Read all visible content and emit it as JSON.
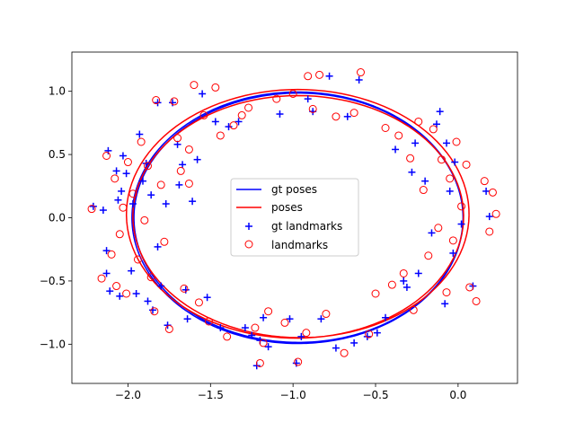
{
  "chart_data": {
    "type": "scatter",
    "title": "",
    "xlabel": "",
    "ylabel": "",
    "xlim": [
      -2.34,
      0.36
    ],
    "ylim": [
      -1.31,
      1.31
    ],
    "xticks": [
      -2.0,
      -1.5,
      -1.0,
      -0.5,
      0.0
    ],
    "yticks": [
      -1.0,
      -0.5,
      0.0,
      0.5,
      1.0
    ],
    "xtick_labels": [
      "−2.0",
      "−1.5",
      "−1.0",
      "−0.5",
      "0.0"
    ],
    "ytick_labels": [
      "−1.0",
      "−0.5",
      "0.0",
      "0.5",
      "1.0"
    ],
    "grid": false,
    "legend_position": "center",
    "legend": [
      {
        "label": "gt poses",
        "marker": "line",
        "color": "#0000ff"
      },
      {
        "label": "poses",
        "marker": "line",
        "color": "#ff0000"
      },
      {
        "label": "gt landmarks",
        "marker": "plus",
        "color": "#0000ff"
      },
      {
        "label": "landmarks",
        "marker": "circle",
        "color": "#ff0000"
      }
    ],
    "series": [
      {
        "name": "gt poses",
        "kind": "line",
        "color": "#0000ff",
        "shape": "ellipse",
        "center": [
          -0.97,
          0.0
        ],
        "rx": 1.0,
        "ry": 0.99,
        "loops": 2
      },
      {
        "name": "poses",
        "kind": "line",
        "color": "#ff0000",
        "shape": "ellipse",
        "center": [
          -0.97,
          0.02
        ],
        "rx": 1.02,
        "ry": 0.97,
        "loops": 6
      },
      {
        "name": "gt landmarks",
        "kind": "scatter",
        "marker": "plus",
        "color": "#0000ff",
        "points": [
          [
            -2.21,
            0.09
          ],
          [
            -2.15,
            0.06
          ],
          [
            -2.13,
            -0.26
          ],
          [
            -2.13,
            -0.44
          ],
          [
            -2.12,
            0.53
          ],
          [
            -2.11,
            -0.58
          ],
          [
            -2.07,
            0.37
          ],
          [
            -2.06,
            0.14
          ],
          [
            -2.05,
            -0.62
          ],
          [
            -2.04,
            0.21
          ],
          [
            -2.03,
            0.49
          ],
          [
            -2.01,
            0.35
          ],
          [
            -1.98,
            -0.42
          ],
          [
            -1.97,
            0.11
          ],
          [
            -1.95,
            -0.6
          ],
          [
            -1.93,
            0.66
          ],
          [
            -1.91,
            0.29
          ],
          [
            -1.89,
            0.43
          ],
          [
            -1.88,
            -0.66
          ],
          [
            -1.86,
            0.18
          ],
          [
            -1.85,
            -0.73
          ],
          [
            -1.82,
            0.91
          ],
          [
            -1.82,
            -0.23
          ],
          [
            -1.8,
            -0.54
          ],
          [
            -1.77,
            0.11
          ],
          [
            -1.76,
            -0.85
          ],
          [
            -1.73,
            0.91
          ],
          [
            -1.7,
            0.58
          ],
          [
            -1.69,
            0.26
          ],
          [
            -1.67,
            0.42
          ],
          [
            -1.65,
            -0.57
          ],
          [
            -1.64,
            -0.8
          ],
          [
            -1.61,
            0.13
          ],
          [
            -1.58,
            0.46
          ],
          [
            -1.55,
            0.98
          ],
          [
            -1.52,
            -0.63
          ],
          [
            -1.47,
            0.76
          ],
          [
            -1.44,
            -0.87
          ],
          [
            -1.39,
            0.72
          ],
          [
            -1.33,
            0.76
          ],
          [
            -1.29,
            -0.87
          ],
          [
            -1.25,
            -0.93
          ],
          [
            -1.22,
            -1.17
          ],
          [
            -1.2,
            -0.97
          ],
          [
            -1.18,
            -0.79
          ],
          [
            -1.15,
            -1.02
          ],
          [
            -1.08,
            0.82
          ],
          [
            -1.02,
            -0.8
          ],
          [
            -0.98,
            -1.15
          ],
          [
            -0.95,
            -0.94
          ],
          [
            -0.91,
            0.94
          ],
          [
            -0.88,
            0.84
          ],
          [
            -0.83,
            -0.8
          ],
          [
            -0.78,
            1.12
          ],
          [
            -0.74,
            -1.03
          ],
          [
            -0.67,
            0.8
          ],
          [
            -0.63,
            -0.99
          ],
          [
            -0.6,
            1.09
          ],
          [
            -0.55,
            -0.94
          ],
          [
            -0.49,
            -0.91
          ],
          [
            -0.44,
            -0.79
          ],
          [
            -0.38,
            0.54
          ],
          [
            -0.33,
            -0.5
          ],
          [
            -0.31,
            -0.55
          ],
          [
            -0.28,
            0.36
          ],
          [
            -0.26,
            0.59
          ],
          [
            -0.24,
            -0.44
          ],
          [
            -0.2,
            0.29
          ],
          [
            -0.16,
            -0.12
          ],
          [
            -0.13,
            0.74
          ],
          [
            -0.11,
            0.84
          ],
          [
            -0.08,
            -0.68
          ],
          [
            -0.07,
            0.59
          ],
          [
            -0.05,
            0.21
          ],
          [
            -0.03,
            -0.28
          ],
          [
            -0.02,
            0.44
          ],
          [
            0.02,
            -0.05
          ],
          [
            0.09,
            -0.54
          ],
          [
            0.17,
            0.21
          ],
          [
            0.19,
            0.01
          ]
        ]
      },
      {
        "name": "landmarks",
        "kind": "scatter",
        "marker": "circle",
        "color": "#ff0000",
        "points": [
          [
            -2.22,
            0.07
          ],
          [
            -2.16,
            -0.48
          ],
          [
            -2.13,
            0.49
          ],
          [
            -2.1,
            -0.29
          ],
          [
            -2.08,
            0.31
          ],
          [
            -2.07,
            -0.54
          ],
          [
            -2.05,
            -0.13
          ],
          [
            -2.03,
            0.08
          ],
          [
            -2.01,
            -0.6
          ],
          [
            -2.0,
            0.44
          ],
          [
            -1.97,
            0.19
          ],
          [
            -1.94,
            -0.33
          ],
          [
            -1.92,
            0.6
          ],
          [
            -1.9,
            -0.02
          ],
          [
            -1.88,
            0.41
          ],
          [
            -1.86,
            -0.47
          ],
          [
            -1.84,
            -0.74
          ],
          [
            -1.83,
            0.93
          ],
          [
            -1.8,
            0.26
          ],
          [
            -1.78,
            -0.19
          ],
          [
            -1.75,
            -0.88
          ],
          [
            -1.72,
            0.92
          ],
          [
            -1.7,
            0.63
          ],
          [
            -1.68,
            0.37
          ],
          [
            -1.66,
            -0.56
          ],
          [
            -1.63,
            0.54
          ],
          [
            -1.6,
            1.05
          ],
          [
            -1.57,
            -0.67
          ],
          [
            -1.54,
            0.81
          ],
          [
            -1.51,
            -0.82
          ],
          [
            -1.47,
            1.03
          ],
          [
            -1.44,
            0.65
          ],
          [
            -1.4,
            -0.94
          ],
          [
            -1.36,
            0.73
          ],
          [
            -1.31,
            0.81
          ],
          [
            -1.27,
            0.87
          ],
          [
            -1.23,
            -0.87
          ],
          [
            -1.2,
            -1.15
          ],
          [
            -1.18,
            -0.99
          ],
          [
            -1.15,
            -0.74
          ],
          [
            -1.1,
            0.94
          ],
          [
            -1.05,
            -0.83
          ],
          [
            -1.0,
            0.98
          ],
          [
            -0.97,
            -1.14
          ],
          [
            -0.92,
            -0.91
          ],
          [
            -0.88,
            0.86
          ],
          [
            -0.84,
            1.13
          ],
          [
            -0.8,
            -0.76
          ],
          [
            -0.74,
            0.8
          ],
          [
            -0.69,
            -1.07
          ],
          [
            -0.63,
            0.83
          ],
          [
            -0.59,
            1.15
          ],
          [
            -0.54,
            -0.92
          ],
          [
            -0.5,
            -0.6
          ],
          [
            -0.44,
            0.71
          ],
          [
            -0.4,
            -0.53
          ],
          [
            -0.36,
            0.65
          ],
          [
            -0.33,
            -0.44
          ],
          [
            -0.29,
            0.47
          ],
          [
            -0.27,
            -0.73
          ],
          [
            -0.24,
            0.76
          ],
          [
            -0.21,
            0.22
          ],
          [
            -0.18,
            -0.3
          ],
          [
            -0.15,
            0.7
          ],
          [
            -0.12,
            -0.08
          ],
          [
            -0.1,
            0.46
          ],
          [
            -0.07,
            -0.59
          ],
          [
            -0.05,
            0.31
          ],
          [
            -0.03,
            -0.18
          ],
          [
            -0.01,
            0.6
          ],
          [
            0.02,
            0.09
          ],
          [
            0.05,
            0.42
          ],
          [
            0.07,
            -0.55
          ],
          [
            0.11,
            -0.66
          ],
          [
            0.16,
            0.29
          ],
          [
            0.21,
            0.2
          ],
          [
            0.23,
            0.03
          ],
          [
            0.19,
            -0.11
          ],
          [
            -0.91,
            1.12
          ],
          [
            -1.63,
            0.27
          ]
        ]
      }
    ]
  }
}
